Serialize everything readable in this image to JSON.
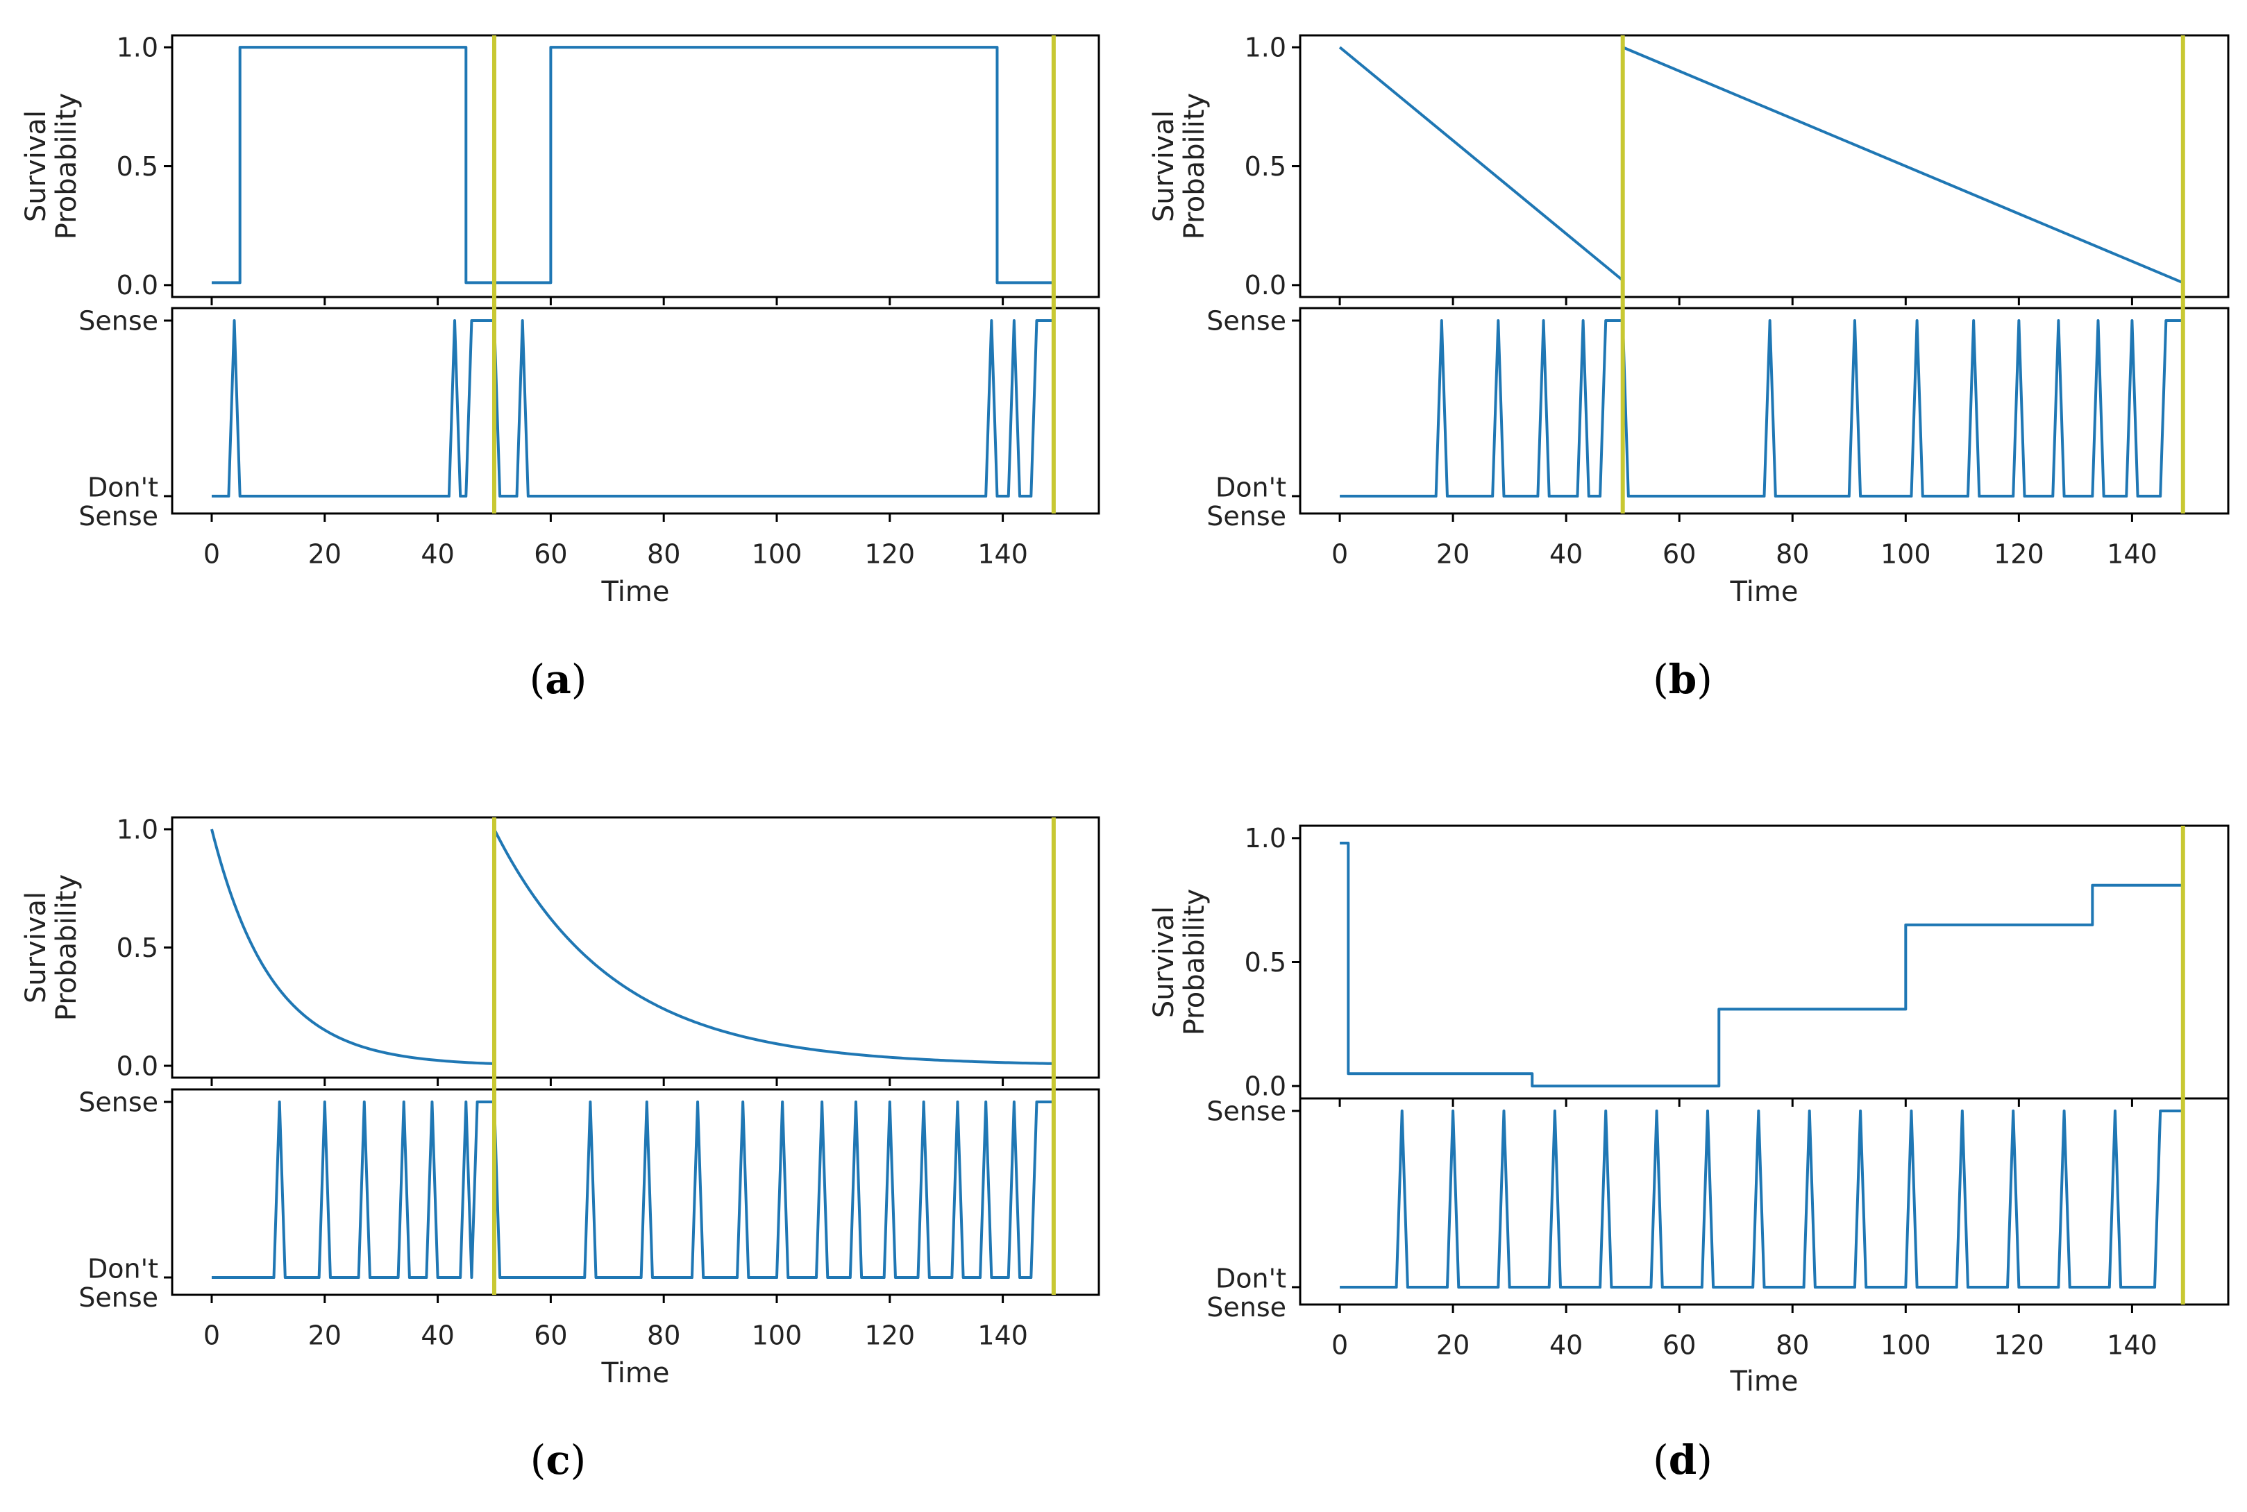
{
  "figure": {
    "colors": {
      "series": "#1f77b4",
      "marker": "#c8c832",
      "axis": "#000000",
      "text": "#222222"
    },
    "sensing_ticks": [
      "Sense",
      "Don't\nSense"
    ],
    "panels": [
      {
        "caption": "a",
        "xlabel": "Time",
        "ylabel": "Survival\nProbability"
      },
      {
        "caption": "b",
        "xlabel": "Time",
        "ylabel": "Survival\nProbability"
      },
      {
        "caption": "c",
        "xlabel": "Time",
        "ylabel": "Survival\nProbability"
      },
      {
        "caption": "d",
        "xlabel": "Time",
        "ylabel": "Survival\nProbability"
      }
    ]
  },
  "chart_data": [
    {
      "id": "a",
      "type": "line",
      "xlim": [
        -7,
        157
      ],
      "ylim": [
        -0.05,
        1.05
      ],
      "xticks": [
        0,
        20,
        40,
        60,
        80,
        100,
        120,
        140
      ],
      "yticks": [
        0.0,
        0.5,
        1.0
      ],
      "ytick_labels": [
        "0.0",
        "0.5",
        "1.0"
      ],
      "markers_x": [
        50,
        149
      ],
      "survival": [
        [
          0,
          0.01
        ],
        [
          5,
          0.01
        ],
        [
          5,
          1.0
        ],
        [
          45,
          1.0
        ],
        [
          45,
          0.01
        ],
        [
          60,
          0.01
        ],
        [
          60,
          1.0
        ],
        [
          139,
          1.0
        ],
        [
          139,
          0.01
        ],
        [
          149,
          0.01
        ]
      ],
      "sense_spikes": [
        4,
        43,
        55,
        138,
        142
      ],
      "sense_holds": [
        [
          46,
          50
        ],
        [
          146,
          149
        ]
      ]
    },
    {
      "id": "b",
      "type": "line",
      "xlim": [
        -7,
        157
      ],
      "ylim": [
        -0.05,
        1.05
      ],
      "xticks": [
        0,
        20,
        40,
        60,
        80,
        100,
        120,
        140
      ],
      "yticks": [
        0.0,
        0.5,
        1.0
      ],
      "ytick_labels": [
        "0.0",
        "0.5",
        "1.0"
      ],
      "markers_x": [
        50,
        149
      ],
      "survival": [
        [
          0,
          1.0
        ],
        [
          50,
          0.02
        ],
        [
          50,
          1.0
        ],
        [
          149,
          0.01
        ]
      ],
      "sense_spikes": [
        18,
        28,
        36,
        43,
        76,
        91,
        102,
        112,
        120,
        127,
        134,
        140
      ],
      "sense_holds": [
        [
          47,
          50
        ],
        [
          146,
          149
        ]
      ]
    },
    {
      "id": "c",
      "type": "line",
      "xlim": [
        -7,
        157
      ],
      "ylim": [
        -0.05,
        1.05
      ],
      "xticks": [
        0,
        20,
        40,
        60,
        80,
        100,
        120,
        140
      ],
      "yticks": [
        0.0,
        0.5,
        1.0
      ],
      "ytick_labels": [
        "0.0",
        "0.5",
        "1.0"
      ],
      "markers_x": [
        50,
        149
      ],
      "survival_decay": [
        {
          "from": 0,
          "to": 50,
          "rate": 0.0945
        },
        {
          "from": 50,
          "to": 149,
          "rate": 0.0475
        }
      ],
      "sense_spikes": [
        12,
        20,
        27,
        34,
        39,
        45,
        67,
        77,
        86,
        94,
        101,
        108,
        114,
        120,
        126,
        132,
        137,
        142
      ],
      "sense_holds": [
        [
          47,
          50
        ],
        [
          146,
          149
        ]
      ]
    },
    {
      "id": "d",
      "type": "line",
      "xlim": [
        -7,
        157
      ],
      "ylim": [
        -0.05,
        1.05
      ],
      "xticks": [
        0,
        20,
        40,
        60,
        80,
        100,
        120,
        140
      ],
      "yticks": [
        0.0,
        0.5,
        1.0
      ],
      "ytick_labels": [
        "0.0",
        "0.5",
        "1.0"
      ],
      "markers_x": [
        149
      ],
      "survival": [
        [
          0,
          0.98
        ],
        [
          1.5,
          0.98
        ],
        [
          1.5,
          0.05
        ],
        [
          34,
          0.05
        ],
        [
          34,
          0.0
        ],
        [
          67,
          0.0
        ],
        [
          67,
          0.31
        ],
        [
          100,
          0.31
        ],
        [
          100,
          0.65
        ],
        [
          133,
          0.65
        ],
        [
          133,
          0.81
        ],
        [
          149,
          0.81
        ]
      ],
      "sense_spikes": [
        11,
        20,
        29,
        38,
        47,
        56,
        65,
        74,
        83,
        92,
        101,
        110,
        119,
        128,
        137,
        145
      ],
      "sense_holds": [
        [
          146,
          149
        ]
      ]
    }
  ]
}
